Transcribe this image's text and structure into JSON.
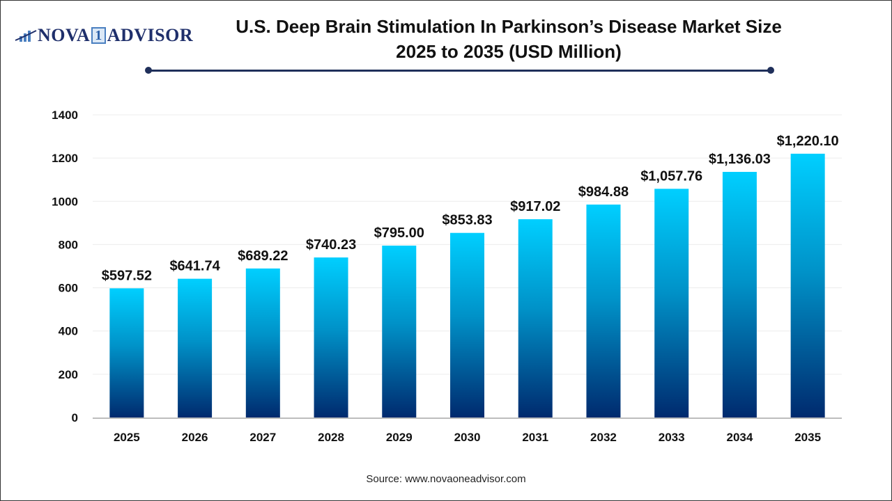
{
  "logo": {
    "text_left": "NOVA",
    "text_one": "1",
    "text_right": "ADVISOR"
  },
  "title_line1": "U.S. Deep Brain Stimulation In Parkinson’s Disease Market Size",
  "title_line2": "2025 to 2035 (USD Million)",
  "source": "Source: www.novaoneadvisor.com",
  "colors": {
    "bar_top": "#00cfff",
    "bar_bottom": "#002a6e",
    "title_rule": "#1f2f5a"
  },
  "chart_data": {
    "type": "bar",
    "title": "U.S. Deep Brain Stimulation In Parkinson’s Disease Market Size 2025 to 2035 (USD Million)",
    "xlabel": "",
    "ylabel": "",
    "ylim": [
      0,
      1400
    ],
    "yticks": [
      0,
      200,
      400,
      600,
      800,
      1000,
      1200,
      1400
    ],
    "grid": true,
    "categories": [
      "2025",
      "2026",
      "2027",
      "2028",
      "2029",
      "2030",
      "2031",
      "2032",
      "2033",
      "2034",
      "2035"
    ],
    "values": [
      597.52,
      641.74,
      689.22,
      740.23,
      795.0,
      853.83,
      917.02,
      984.88,
      1057.76,
      1136.03,
      1220.1
    ],
    "labels": [
      "$597.52",
      "$641.74",
      "$689.22",
      "$740.23",
      "$795.00",
      "$853.83",
      "$917.02",
      "$984.88",
      "$1,057.76",
      "$1,136.03",
      "$1,220.10"
    ]
  }
}
